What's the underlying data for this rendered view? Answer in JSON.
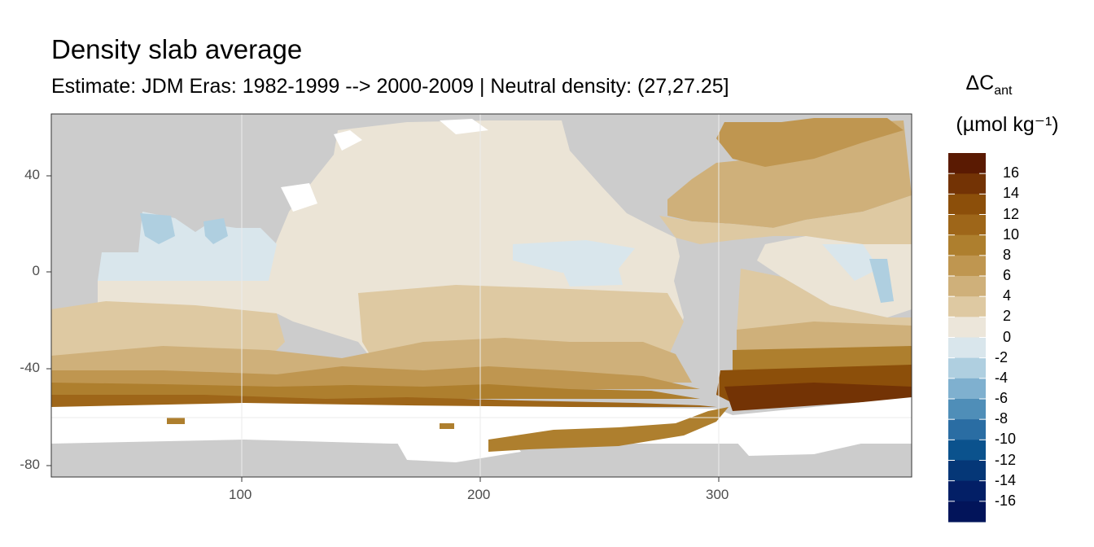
{
  "title": "Density slab average",
  "subtitle": "Estimate: JDM Eras: 1982-1999 --> 2000-2009 | Neutral density: (27,27.25]",
  "legend": {
    "title_main": "ΔC",
    "title_sub": "ant",
    "unit": "(µmol kg⁻¹)",
    "labels": [
      "16",
      "14",
      "12",
      "10",
      "8",
      "6",
      "4",
      "2",
      "0",
      "-2",
      "-4",
      "-6",
      "-8",
      "-10",
      "-12",
      "-14",
      "-16"
    ],
    "colors": [
      "#5a1a02",
      "#733305",
      "#8c4f0a",
      "#9e6619",
      "#ae7f2e",
      "#bf9650",
      "#cfb07a",
      "#dec9a2",
      "#ece6da",
      "#d9e6ec",
      "#afcfe0",
      "#7fb0cf",
      "#4f8eb8",
      "#2a6da3",
      "#0b528d",
      "#053777",
      "#031f66",
      "#02145a"
    ]
  },
  "axes": {
    "x_ticks": [
      "100",
      "200",
      "300"
    ],
    "y_ticks": [
      "40",
      "0",
      "-40",
      "-80"
    ]
  },
  "colors": {
    "land": "#cccccc",
    "no_data": "#ffffff",
    "panel_border": "#333333",
    "grid": "#ebebeb"
  }
}
